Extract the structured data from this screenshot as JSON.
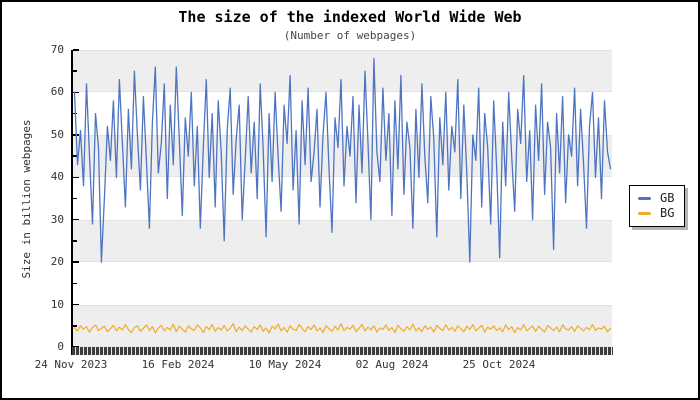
{
  "chart_data": {
    "type": "line",
    "title": "The size of the indexed World Wide Web",
    "subtitle": "(Number of webpages)",
    "xlabel": "",
    "ylabel": "Size in billion webpages",
    "ylim": [
      0,
      70
    ],
    "y_tick_step": 10,
    "y_ticks": [
      "70",
      "60",
      "50",
      "40",
      "30",
      "20",
      "10",
      "0"
    ],
    "x_tick_labels": [
      "24 Nov 2023",
      "16 Feb 2024",
      "10 May 2024",
      "02 Aug 2024",
      "25 Oct 2024"
    ],
    "grid": "alternating horizontal gray bands every 10 units",
    "legend_position": "right of plot",
    "x_axis_style": "dense daily tick band",
    "series": [
      {
        "name": "GB",
        "color": "#4E74C2",
        "approx_range": [
          20,
          68
        ],
        "values": [
          60,
          43,
          51,
          38,
          62,
          45,
          29,
          55,
          47,
          20,
          35,
          52,
          44,
          58,
          40,
          63,
          48,
          33,
          56,
          42,
          65,
          50,
          37,
          59,
          44,
          28,
          53,
          66,
          41,
          48,
          62,
          35,
          57,
          43,
          66,
          49,
          31,
          54,
          45,
          60,
          38,
          52,
          28,
          47,
          63,
          40,
          55,
          33,
          58,
          46,
          25,
          51,
          61,
          36,
          49,
          57,
          30,
          44,
          59,
          41,
          53,
          35,
          62,
          47,
          26,
          55,
          39,
          60,
          45,
          32,
          57,
          48,
          64,
          37,
          51,
          29,
          58,
          43,
          61,
          39,
          46,
          56,
          33,
          50,
          60,
          42,
          27,
          54,
          47,
          63,
          38,
          52,
          45,
          59,
          34,
          57,
          41,
          65,
          48,
          30,
          68,
          46,
          39,
          61,
          44,
          55,
          31,
          58,
          42,
          64,
          36,
          53,
          47,
          28,
          56,
          40,
          62,
          45,
          34,
          59,
          49,
          26,
          54,
          43,
          60,
          37,
          52,
          46,
          63,
          35,
          57,
          41,
          20,
          50,
          44,
          61,
          33,
          55,
          47,
          29,
          58,
          42,
          21,
          53,
          38,
          60,
          45,
          32,
          56,
          48,
          64,
          39,
          51,
          30,
          57,
          44,
          62,
          36,
          53,
          47,
          23,
          55,
          41,
          59,
          34,
          50,
          45,
          61,
          38,
          56,
          43,
          28,
          52,
          60,
          40,
          54,
          35,
          58,
          46,
          42
        ]
      },
      {
        "name": "BG",
        "color": "#EFAC28",
        "approx_range": [
          3,
          6
        ],
        "values": [
          4.5,
          3.8,
          5.0,
          4.2,
          4.8,
          3.5,
          4.6,
          5.2,
          3.9,
          4.4,
          4.9,
          3.6,
          4.3,
          5.1,
          3.8,
          4.7,
          4.0,
          5.3,
          4.1,
          3.4,
          4.6,
          5.0,
          3.7,
          4.4,
          5.2,
          3.9,
          4.8,
          3.3,
          4.5,
          5.1,
          3.8,
          4.6,
          4.0,
          5.4,
          3.6,
          4.9,
          4.2,
          3.5,
          5.0,
          4.3,
          3.9,
          5.2,
          4.5,
          3.4,
          4.8,
          4.1,
          5.3,
          3.7,
          4.6,
          4.0,
          5.1,
          3.8,
          4.4,
          5.5,
          3.6,
          4.7,
          3.9,
          5.0,
          4.2,
          3.5,
          4.8,
          4.1,
          5.2,
          3.7,
          4.5,
          3.3,
          4.9,
          4.3,
          5.4,
          3.8,
          4.6,
          3.5,
          5.0,
          4.2,
          3.9,
          5.3,
          4.4,
          3.6,
          4.8,
          4.1,
          5.2,
          3.8,
          4.5,
          3.4,
          5.0,
          4.3,
          3.7,
          4.9,
          4.0,
          5.5,
          3.9,
          4.6,
          4.2,
          5.1,
          3.6,
          4.4,
          5.3,
          3.8,
          4.7,
          4.0,
          5.0,
          3.5,
          4.5,
          4.1,
          5.2,
          3.9,
          4.6,
          3.4,
          5.1,
          4.3,
          3.7,
          4.8,
          4.0,
          5.4,
          3.8,
          4.5,
          3.6,
          5.0,
          4.2,
          4.7,
          3.5,
          5.1,
          4.4,
          3.9,
          5.2,
          4.0,
          4.6,
          3.7,
          5.0,
          4.3,
          3.6,
          4.9,
          4.1,
          5.3,
          3.8,
          4.4,
          5.1,
          3.5,
          4.7,
          4.2,
          5.0,
          3.9,
          4.5,
          3.6,
          5.2,
          4.1,
          4.8,
          3.4,
          4.6,
          4.0,
          5.3,
          3.8,
          4.4,
          5.0,
          3.7,
          4.9,
          4.2,
          3.5,
          5.1,
          4.5,
          3.9,
          4.7,
          3.6,
          5.2,
          4.3,
          4.0,
          4.8,
          3.7,
          5.0,
          4.4,
          3.8,
          4.6,
          4.1,
          5.3,
          3.9,
          4.5,
          4.2,
          4.9,
          3.6,
          4.4
        ]
      }
    ]
  },
  "legend": {
    "items": [
      {
        "label": "GB",
        "color": "#4E74C2"
      },
      {
        "label": "BG",
        "color": "#EFAC28"
      }
    ]
  },
  "colors": {
    "background": "#ffffff",
    "frame_border": "#000000",
    "band_gray": "#EEEEEE",
    "axis_text": "#333333",
    "tick_band_dark": "#3c3c3c"
  }
}
